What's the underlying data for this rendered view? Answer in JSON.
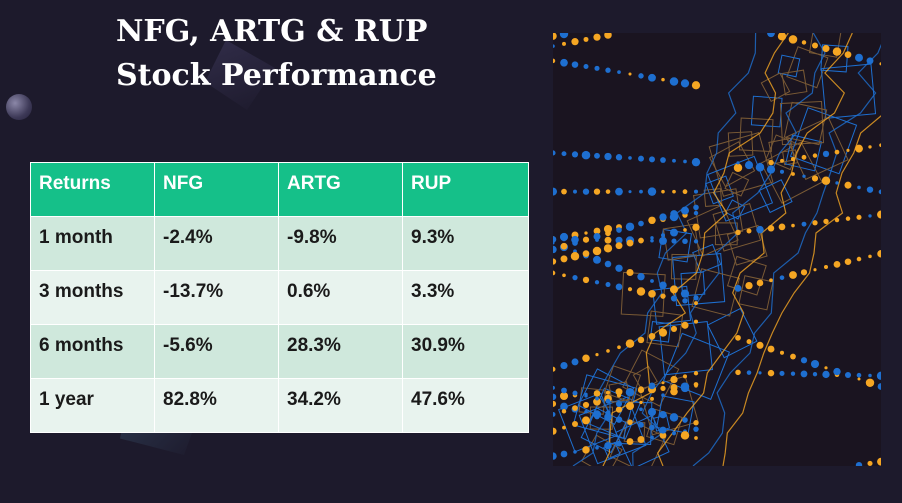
{
  "slide": {
    "title_line1": "NFG, ARTG & RUP",
    "title_line2": "Stock Performance"
  },
  "table": {
    "headers": [
      "Returns",
      "NFG",
      "ARTG",
      "RUP"
    ],
    "rows": [
      [
        "1 month",
        "-2.4%",
        "-9.8%",
        "9.3%"
      ],
      [
        "3 months",
        "-13.7%",
        "0.6%",
        "3.3%"
      ],
      [
        "6 months",
        "-5.6%",
        "28.3%",
        "30.9%"
      ],
      [
        "1 year",
        "82.8%",
        "34.2%",
        "47.6%"
      ]
    ]
  },
  "colors": {
    "background": "#1d1a2c",
    "header": "#15c089",
    "row_dark": "#cfe8dc",
    "row_light": "#e8f3ee",
    "art_orange": "#f5a623",
    "art_blue": "#1e6fd0"
  }
}
